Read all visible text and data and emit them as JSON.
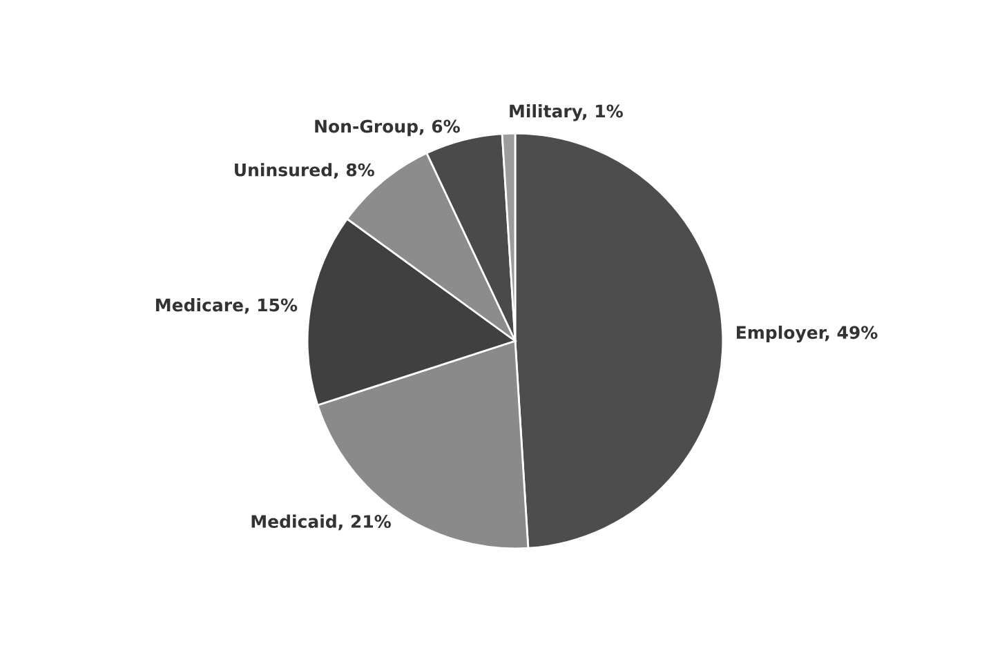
{
  "chart_data": {
    "type": "pie",
    "categories": [
      "Employer",
      "Medicaid",
      "Medicare",
      "Uninsured",
      "Non-Group",
      "Military"
    ],
    "values": [
      49,
      21,
      15,
      8,
      6,
      1
    ],
    "value_labels": [
      "49%",
      "21%",
      "15%",
      "8%",
      "6%",
      "1%"
    ],
    "colors": [
      "#4d4d4d",
      "#8a8a8a",
      "#404040",
      "#8c8c8c",
      "#4a4a4a",
      "#9c9c9c"
    ],
    "legend": false
  }
}
